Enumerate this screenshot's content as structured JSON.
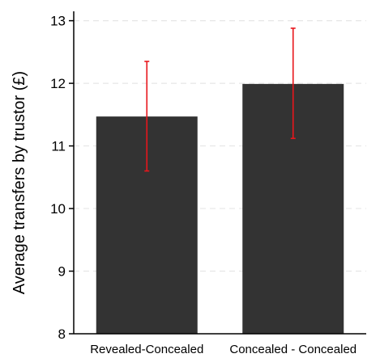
{
  "chart_data": {
    "type": "bar",
    "title": "",
    "xlabel": "",
    "ylabel": "Average transfers by trustor (£)",
    "categories": [
      "Revealed-Concealed",
      "Concealed - Concealed"
    ],
    "values": [
      11.47,
      11.99
    ],
    "error_bars": [
      {
        "low": 10.6,
        "high": 12.35
      },
      {
        "low": 11.12,
        "high": 12.88
      }
    ],
    "ylim": [
      8,
      13.15
    ],
    "yticks": [
      "8",
      "9",
      "10",
      "11",
      "12",
      "13"
    ],
    "grid": "horizontal dashed",
    "colors": {
      "bar": "#333333",
      "error": "#e8161c",
      "grid": "#e6e6e6",
      "axis": "#000000"
    }
  }
}
